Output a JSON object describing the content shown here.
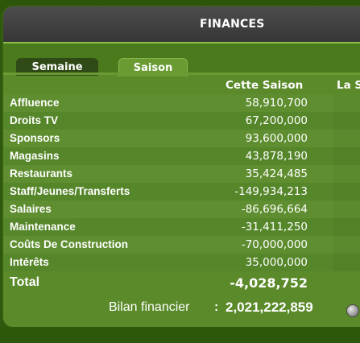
{
  "window": {
    "title": "FINANCES"
  },
  "tabs": [
    {
      "label": "Semaine",
      "active": false
    },
    {
      "label": "Saison",
      "active": true
    }
  ],
  "columns": {
    "current": "Cette Saison",
    "last": "La S"
  },
  "rows": [
    {
      "label": "Affluence",
      "value": "58,910,700"
    },
    {
      "label": "Droits TV",
      "value": "67,200,000"
    },
    {
      "label": "Sponsors",
      "value": "93,600,000"
    },
    {
      "label": "Magasins",
      "value": "43,878,190"
    },
    {
      "label": "Restaurants",
      "value": "35,424,485"
    },
    {
      "label": "Staff/Jeunes/Transferts",
      "value": "-149,934,213"
    },
    {
      "label": "Salaires",
      "value": "-86,696,664"
    },
    {
      "label": "Maintenance",
      "value": "-31,411,250"
    },
    {
      "label": "Coûts De Construction",
      "value": "-70,000,000"
    },
    {
      "label": "Intérêts",
      "value": "35,000,000"
    }
  ],
  "total": {
    "label": "Total",
    "value": "-4,028,752"
  },
  "balance": {
    "label": "Bilan financier",
    "separator": ":",
    "value": "2,021,222,859",
    "icon": "coin-icon"
  },
  "colors": {
    "panel": "#5a8a2a",
    "title_bar": "#3f3f3f",
    "accent": "#8cbd4a",
    "text": "#ffffff"
  }
}
